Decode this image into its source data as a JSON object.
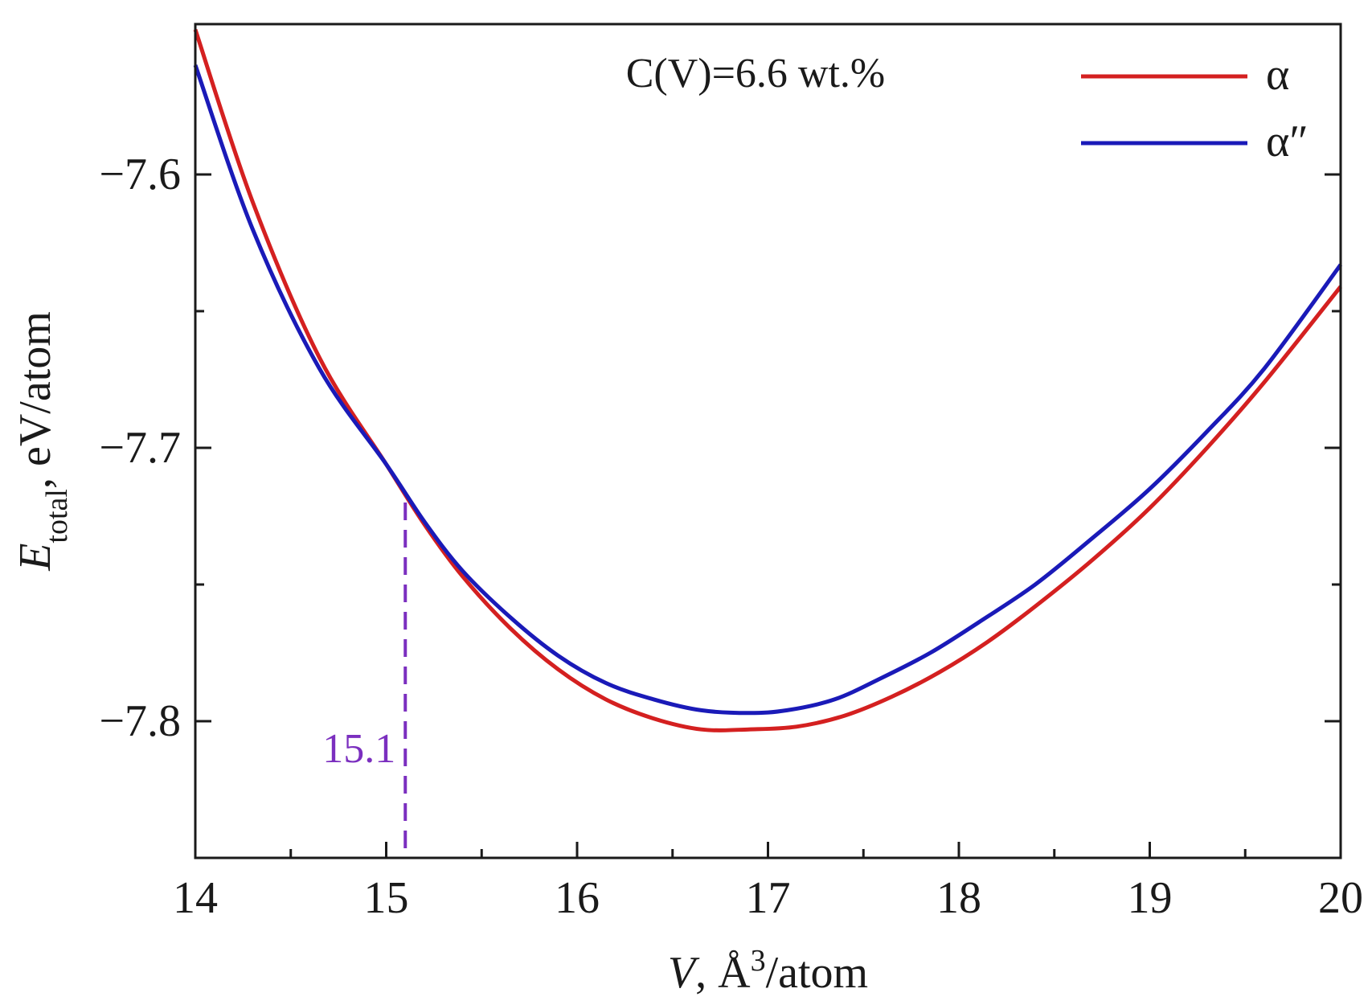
{
  "chart_data": {
    "type": "line",
    "title": "",
    "annotation": "C(V)=6.6 wt.%",
    "xlabel_symbol": "V",
    "xlabel_unit": ", Å",
    "xlabel_sup": "3",
    "xlabel_tail": "/atom",
    "ylabel_symbol": "E",
    "ylabel_sub": "total",
    "ylabel_unit": ", eV/atom",
    "xlim": [
      14,
      20
    ],
    "ylim": [
      -7.85,
      -7.545
    ],
    "x_ticks": [
      14,
      15,
      16,
      17,
      18,
      19,
      20
    ],
    "x_tick_labels": [
      "14",
      "15",
      "16",
      "17",
      "18",
      "19",
      "20"
    ],
    "x_minor_ticks": [
      14.5,
      15.5,
      16.5,
      17.5,
      18.5,
      19.5
    ],
    "y_ticks": [
      -7.6,
      -7.7,
      -7.8
    ],
    "y_tick_labels": [
      "−7.6",
      "−7.7",
      "−7.8"
    ],
    "y_minor_ticks": [
      -7.65,
      -7.75
    ],
    "grid": false,
    "legend_position": "top-right",
    "series": [
      {
        "name": "α",
        "color": "#d42020",
        "x": [
          14.0,
          14.3,
          14.65,
          15.0,
          15.2,
          15.4,
          15.65,
          15.9,
          16.15,
          16.4,
          16.65,
          16.9,
          17.15,
          17.4,
          17.65,
          17.9,
          18.15,
          18.4,
          18.7,
          19.0,
          19.3,
          19.6,
          20.0
        ],
        "y": [
          -7.547,
          -7.61,
          -7.667,
          -7.706,
          -7.728,
          -7.747,
          -7.766,
          -7.781,
          -7.792,
          -7.799,
          -7.803,
          -7.803,
          -7.802,
          -7.798,
          -7.791,
          -7.782,
          -7.771,
          -7.758,
          -7.741,
          -7.722,
          -7.7,
          -7.676,
          -7.641
        ]
      },
      {
        "name": "α″",
        "color": "#1a1ab8",
        "x": [
          14.0,
          14.3,
          14.65,
          15.0,
          15.2,
          15.4,
          15.65,
          15.9,
          16.15,
          16.4,
          16.65,
          16.9,
          17.1,
          17.35,
          17.6,
          17.85,
          18.1,
          18.4,
          18.7,
          19.0,
          19.3,
          19.6,
          20.0
        ],
        "y": [
          -7.56,
          -7.62,
          -7.671,
          -7.706,
          -7.727,
          -7.745,
          -7.762,
          -7.776,
          -7.786,
          -7.792,
          -7.796,
          -7.797,
          -7.796,
          -7.792,
          -7.784,
          -7.775,
          -7.764,
          -7.75,
          -7.733,
          -7.715,
          -7.694,
          -7.671,
          -7.633
        ]
      }
    ],
    "marker": {
      "x": 15.1,
      "y_top": -7.72,
      "label": "15.1",
      "color": "#7b2fbf"
    }
  }
}
